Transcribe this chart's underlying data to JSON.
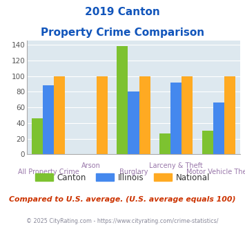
{
  "title_line1": "2019 Canton",
  "title_line2": "Property Crime Comparison",
  "categories": [
    "All Property Crime",
    "Arson",
    "Burglary",
    "Larceny & Theft",
    "Motor Vehicle Theft"
  ],
  "canton_values": [
    46,
    0,
    138,
    27,
    30
  ],
  "illinois_values": [
    88,
    0,
    80,
    92,
    66
  ],
  "national_values": [
    100,
    100,
    100,
    100,
    100
  ],
  "canton_color": "#7dc230",
  "illinois_color": "#4488ee",
  "national_color": "#ffaa22",
  "ylim": [
    0,
    145
  ],
  "yticks": [
    0,
    20,
    40,
    60,
    80,
    100,
    120,
    140
  ],
  "plot_bg": "#dde8ef",
  "title_color": "#1155bb",
  "xlabel_color": "#9977aa",
  "legend_labels": [
    "Canton",
    "Illinois",
    "National"
  ],
  "footnote1": "Compared to U.S. average. (U.S. average equals 100)",
  "footnote2": "© 2025 CityRating.com - https://www.cityrating.com/crime-statistics/",
  "footnote1_color": "#cc3300",
  "footnote2_color": "#888899",
  "footnote2_link_color": "#4488cc"
}
